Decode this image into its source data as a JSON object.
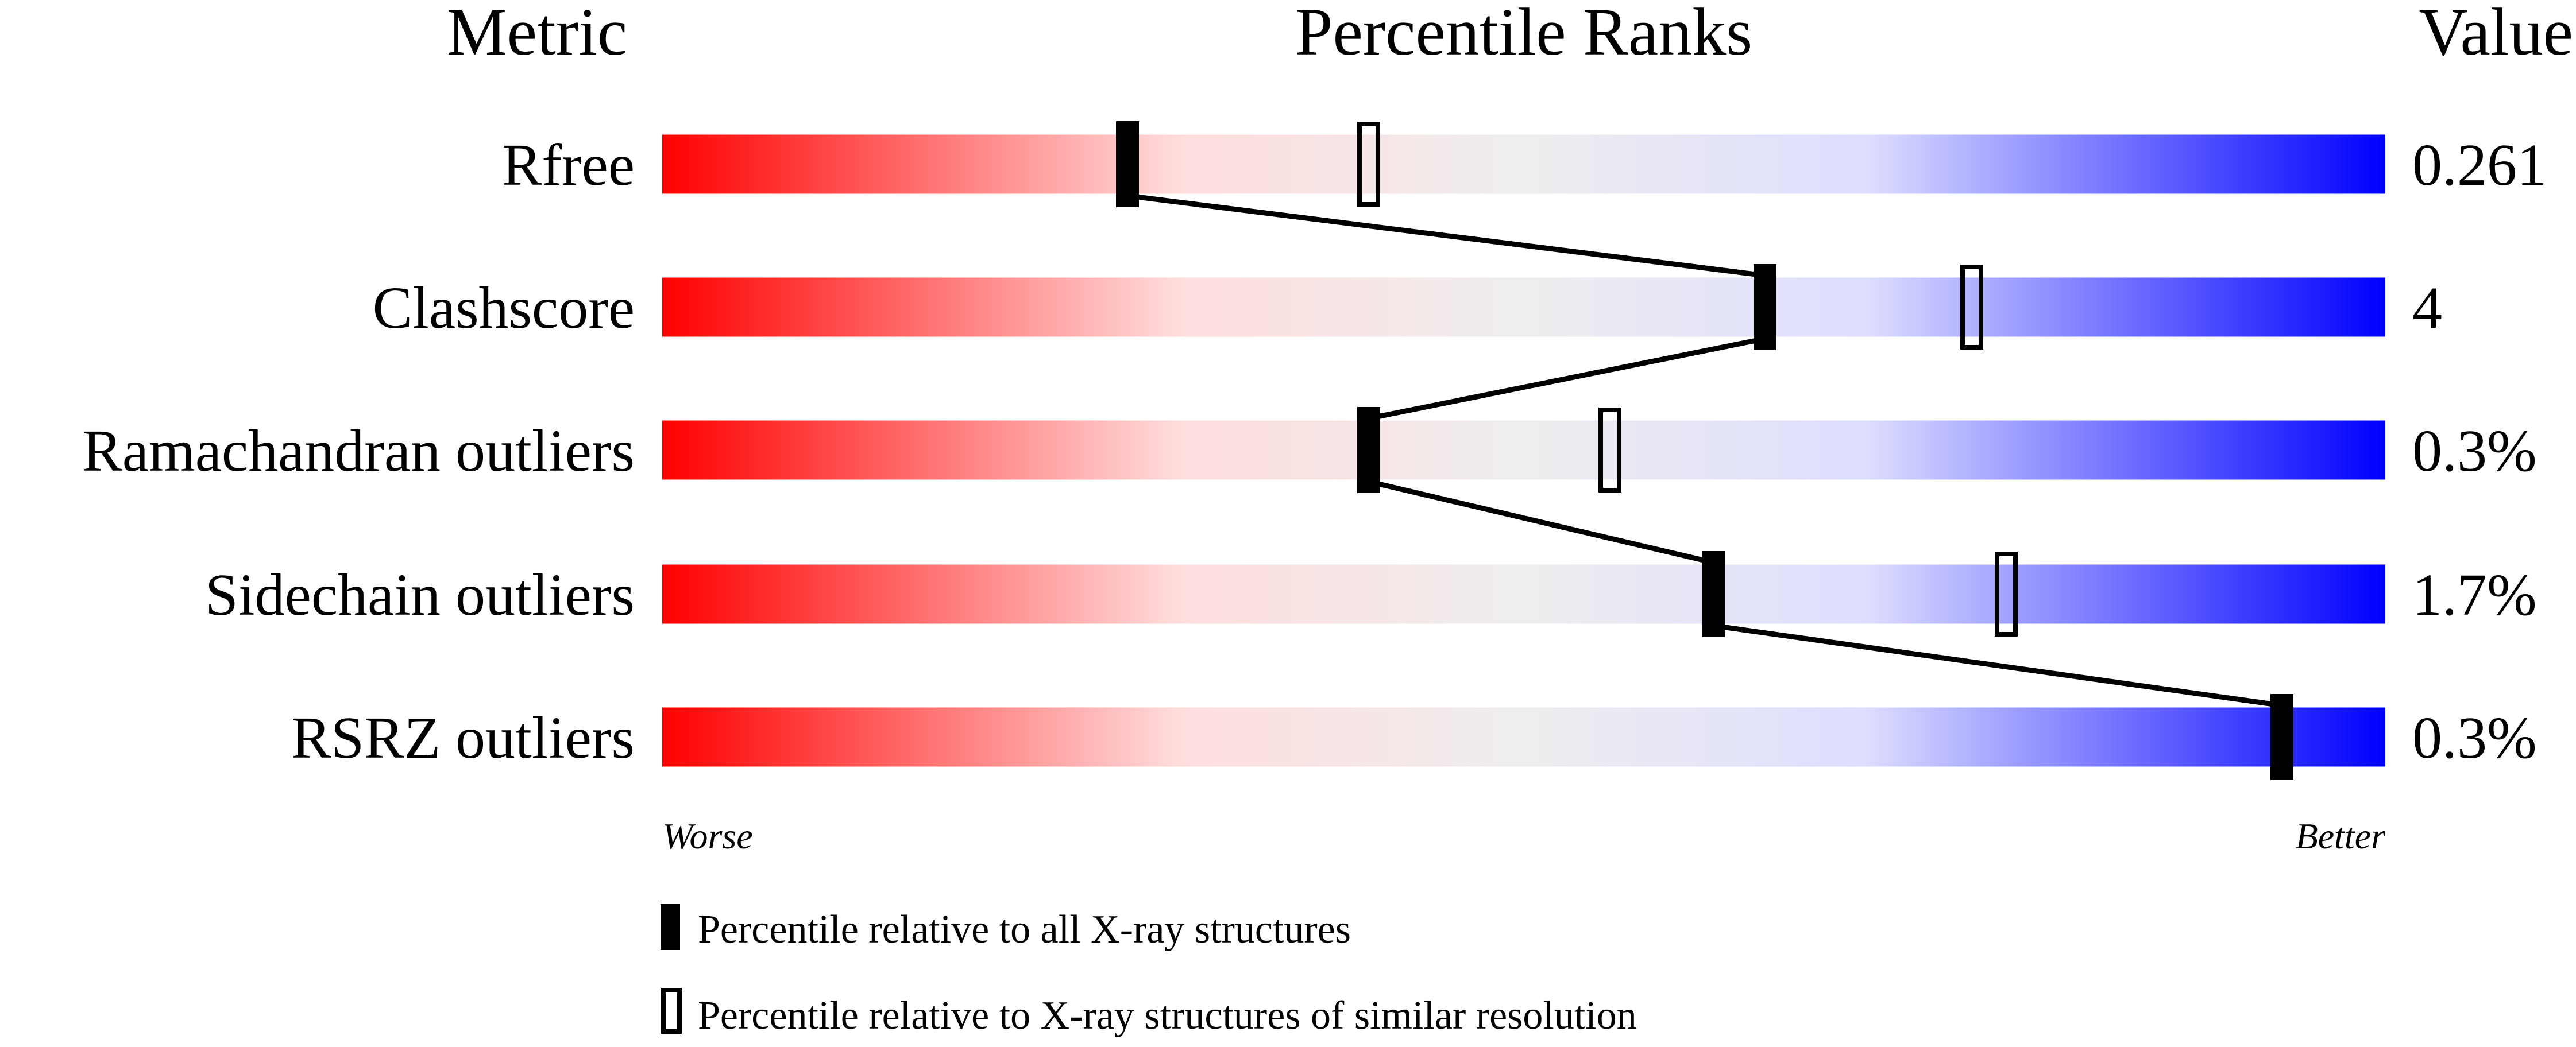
{
  "chart_data": {
    "type": "percentile-slider",
    "headers": {
      "metric": "Metric",
      "ranks": "Percentile Ranks",
      "value": "Value"
    },
    "xlim": [
      0,
      100
    ],
    "axis_ends": {
      "left": "Worse",
      "right": "Better"
    },
    "gradient_colors": [
      "#ff0000",
      "#ffdddd",
      "#eeeeee",
      "#ddddff",
      "#0000ff"
    ],
    "metrics": [
      {
        "name": "Rfree",
        "value": "0.261",
        "percentile_all": 27,
        "percentile_similar": 41
      },
      {
        "name": "Clashscore",
        "value": "4",
        "percentile_all": 64,
        "percentile_similar": 76
      },
      {
        "name": "Ramachandran outliers",
        "value": "0.3%",
        "percentile_all": 41,
        "percentile_similar": 55
      },
      {
        "name": "Sidechain outliers",
        "value": "1.7%",
        "percentile_all": 61,
        "percentile_similar": 78
      },
      {
        "name": "RSRZ outliers",
        "value": "0.3%",
        "percentile_all": 94,
        "percentile_similar": 94
      }
    ],
    "legend": [
      {
        "marker": "filled",
        "label": "Percentile relative to all X-ray structures"
      },
      {
        "marker": "open",
        "label": "Percentile relative to X-ray structures of similar resolution"
      }
    ]
  }
}
